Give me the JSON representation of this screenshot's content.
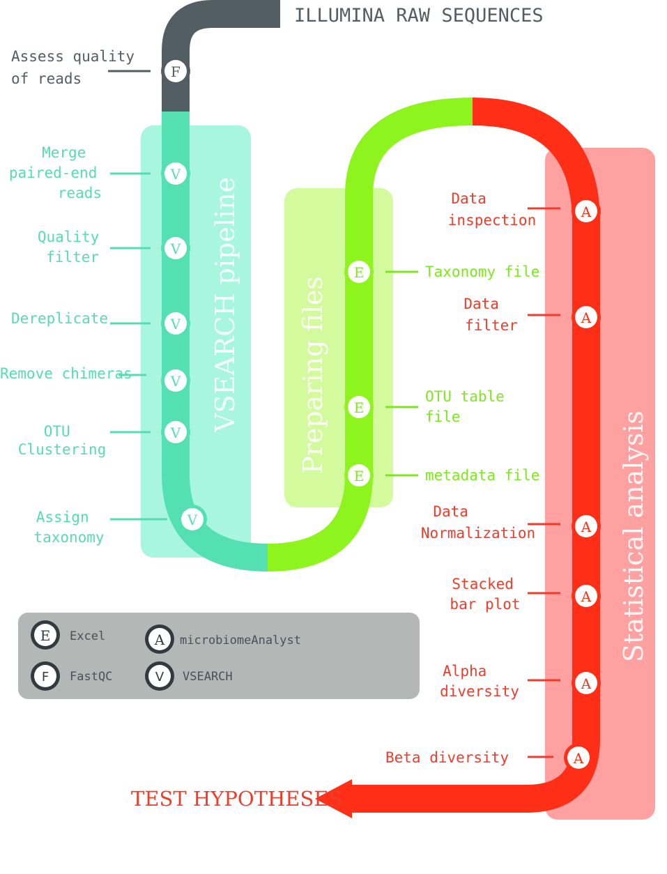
{
  "title": "ILLUMINA RAW SEQUENCES",
  "end_label": "TEST HYPOTHESES",
  "colors": {
    "gray_line": "#535e64",
    "vsearch_line": "#55e0b1",
    "vsearch_box": "#a8f6de",
    "vsearch_text": "#56dcb1",
    "files_line": "#8ef41e",
    "files_box": "#d3fb9e",
    "files_text": "#7ee81e",
    "stats_line": "#ff2f17",
    "stats_box": "#ffa1a1",
    "stats_text": "#f03c2a",
    "legend_box": "#b3b7b5",
    "legend_text": "#4a5055"
  },
  "sections": {
    "vsearch": "VSEARCH pipeline",
    "files": "Preparing files",
    "stats": "Statistical analysis"
  },
  "steps": {
    "assess_quality": {
      "lines": [
        "Assess quality",
        "of reads"
      ],
      "badge": "F"
    },
    "merge": {
      "lines": [
        "Merge",
        "paired-end",
        "reads"
      ],
      "badge": "V"
    },
    "quality_filter": {
      "lines": [
        "Quality",
        "filter"
      ],
      "badge": "V"
    },
    "dereplicate": {
      "lines": [
        "Dereplicate"
      ],
      "badge": "V"
    },
    "remove_chimeras": {
      "lines": [
        "Remove chimeras"
      ],
      "badge": "V"
    },
    "otu_clustering": {
      "lines": [
        "OTU",
        "Clustering"
      ],
      "badge": "V"
    },
    "assign_taxonomy": {
      "lines": [
        "Assign",
        "taxonomy"
      ],
      "badge": "V"
    },
    "taxonomy_file": {
      "lines": [
        "Taxonomy file"
      ],
      "badge": "E"
    },
    "otu_table_file": {
      "lines": [
        "OTU table",
        "file"
      ],
      "badge": "E"
    },
    "metadata_file": {
      "lines": [
        "metadata file"
      ],
      "badge": "E"
    },
    "data_inspection": {
      "lines": [
        "Data",
        "inspection"
      ],
      "badge": "A"
    },
    "data_filter": {
      "lines": [
        "Data",
        "filter"
      ],
      "badge": "A"
    },
    "data_normalization": {
      "lines": [
        "Data",
        "Normalization"
      ],
      "badge": "A"
    },
    "stacked_bar": {
      "lines": [
        "Stacked",
        "bar plot"
      ],
      "badge": "A"
    },
    "alpha_diversity": {
      "lines": [
        "Alpha",
        "diversity"
      ],
      "badge": "A"
    },
    "beta_diversity": {
      "lines": [
        "Beta diversity"
      ],
      "badge": "A"
    }
  },
  "legend": [
    {
      "key": "E",
      "label": "Excel"
    },
    {
      "key": "A",
      "label": "microbiomeAnalyst"
    },
    {
      "key": "F",
      "label": "FastQC"
    },
    {
      "key": "V",
      "label": "VSEARCH"
    }
  ]
}
